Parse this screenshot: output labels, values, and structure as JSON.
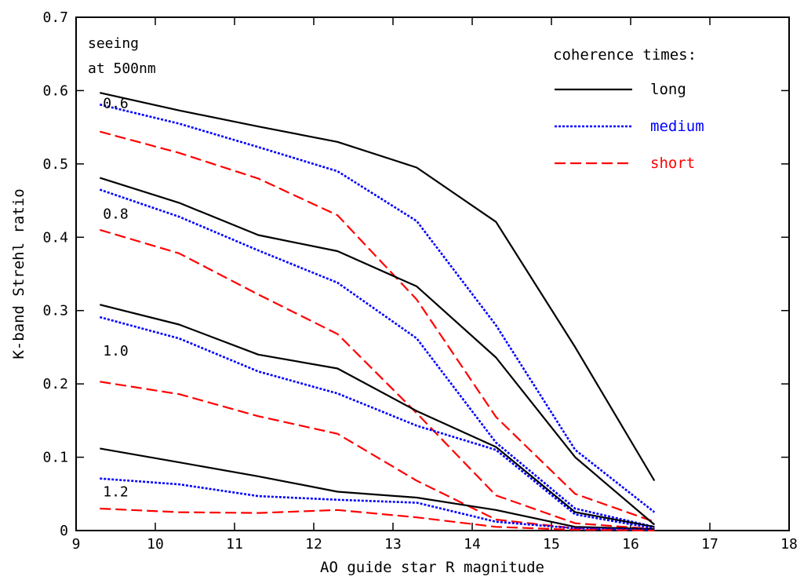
{
  "chart_data": {
    "type": "line",
    "xlabel": "AO guide star R magnitude",
    "ylabel": "K-band Strehl ratio",
    "xlim": [
      9,
      18
    ],
    "ylim": [
      0,
      0.7
    ],
    "x_ticks": [
      "9",
      "10",
      "11",
      "12",
      "13",
      "14",
      "15",
      "16",
      "17",
      "18"
    ],
    "y_ticks": [
      "0",
      "0.1",
      "0.2",
      "0.3",
      "0.4",
      "0.5",
      "0.6",
      "0.7"
    ],
    "grid": false,
    "legend": {
      "title": "coherence times:",
      "placement": "top-right",
      "entries": [
        {
          "label": "long",
          "color": "#000000",
          "dash": "solid"
        },
        {
          "label": "medium",
          "color": "#0000ff",
          "dash": "dotted"
        },
        {
          "label": "short",
          "color": "#ff0000",
          "dash": "dashed"
        }
      ]
    },
    "annotations": {
      "seeing_line1": "seeing",
      "seeing_line2": "at 500nm",
      "group_labels": [
        {
          "text": "0.6",
          "x": 9.5,
          "y": 0.583
        },
        {
          "text": "0.8",
          "x": 9.5,
          "y": 0.432
        },
        {
          "text": "1.0",
          "x": 9.5,
          "y": 0.245
        },
        {
          "text": "1.2",
          "x": 9.5,
          "y": 0.053
        }
      ]
    },
    "x": [
      9.3,
      10.3,
      11.3,
      12.3,
      13.3,
      14.3,
      15.3,
      16.3
    ],
    "series": [
      {
        "seeing": "0.6",
        "coherence": "long",
        "values": [
          0.597,
          0.573,
          0.551,
          0.53,
          0.495,
          0.421,
          0.25,
          0.068
        ]
      },
      {
        "seeing": "0.6",
        "coherence": "medium",
        "values": [
          0.581,
          0.555,
          0.523,
          0.49,
          0.422,
          0.28,
          0.11,
          0.025
        ]
      },
      {
        "seeing": "0.6",
        "coherence": "short",
        "values": [
          0.544,
          0.515,
          0.48,
          0.43,
          0.315,
          0.155,
          0.05,
          0.012
        ]
      },
      {
        "seeing": "0.8",
        "coherence": "long",
        "values": [
          0.481,
          0.447,
          0.403,
          0.381,
          0.333,
          0.236,
          0.1,
          0.008
        ]
      },
      {
        "seeing": "0.8",
        "coherence": "medium",
        "values": [
          0.465,
          0.428,
          0.382,
          0.338,
          0.262,
          0.12,
          0.03,
          0.005
        ]
      },
      {
        "seeing": "0.8",
        "coherence": "short",
        "values": [
          0.41,
          0.378,
          0.322,
          0.268,
          0.16,
          0.048,
          0.01,
          0.002
        ]
      },
      {
        "seeing": "1.0",
        "coherence": "long",
        "values": [
          0.308,
          0.281,
          0.24,
          0.221,
          0.163,
          0.114,
          0.025,
          0.005
        ]
      },
      {
        "seeing": "1.0",
        "coherence": "medium",
        "values": [
          0.291,
          0.262,
          0.217,
          0.187,
          0.143,
          0.11,
          0.022,
          0.003
        ]
      },
      {
        "seeing": "1.0",
        "coherence": "short",
        "values": [
          0.203,
          0.186,
          0.156,
          0.132,
          0.068,
          0.015,
          0.003,
          0.001
        ]
      },
      {
        "seeing": "1.2",
        "coherence": "long",
        "values": [
          0.112,
          0.093,
          0.074,
          0.053,
          0.045,
          0.028,
          0.005,
          0.002
        ]
      },
      {
        "seeing": "1.2",
        "coherence": "medium",
        "values": [
          0.071,
          0.063,
          0.047,
          0.042,
          0.038,
          0.012,
          0.003,
          0.001
        ]
      },
      {
        "seeing": "1.2",
        "coherence": "short",
        "values": [
          0.03,
          0.025,
          0.024,
          0.028,
          0.018,
          0.005,
          0.001,
          0.0
        ]
      }
    ]
  }
}
